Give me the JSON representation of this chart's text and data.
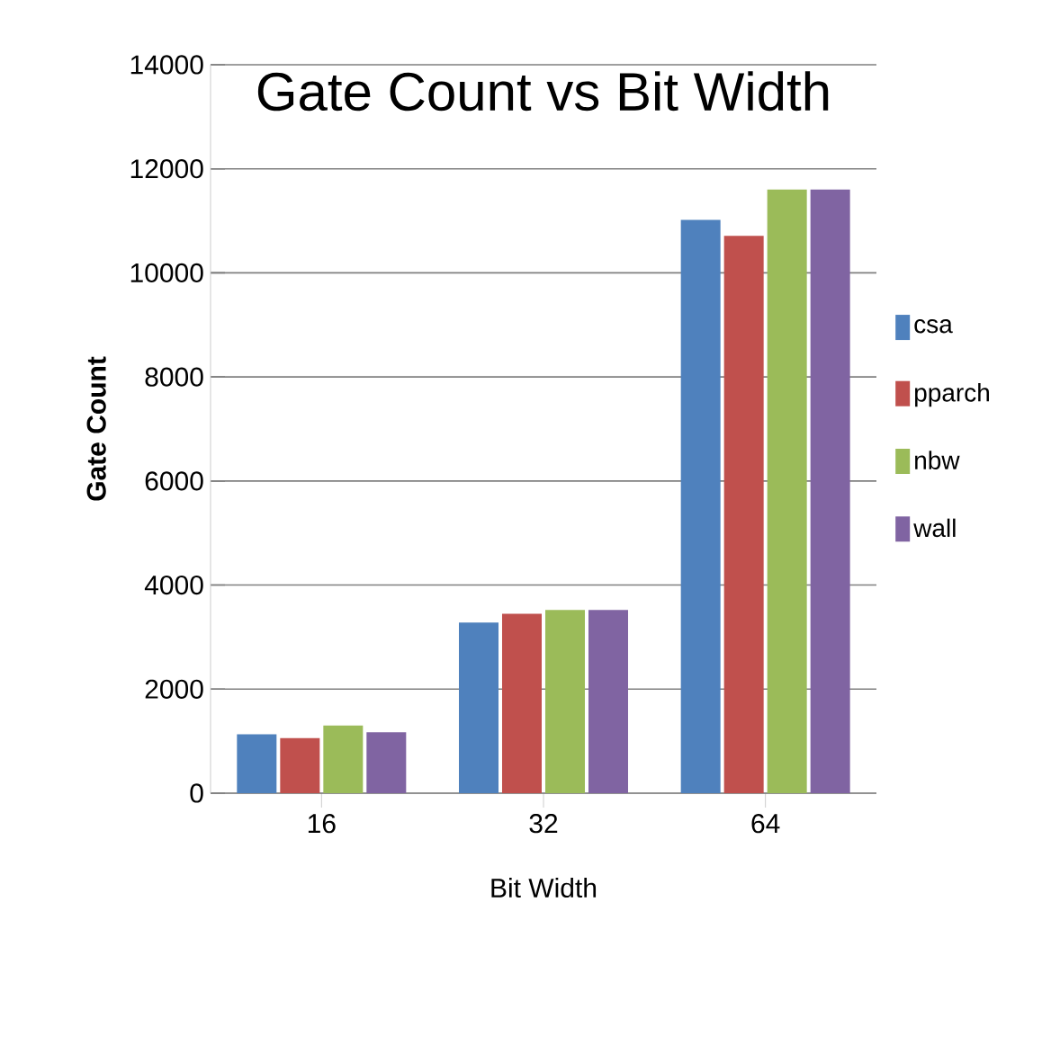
{
  "chart_data": {
    "type": "bar",
    "title": "Gate Count vs Bit Width",
    "xlabel": "Bit Width",
    "ylabel": "Gate Count",
    "categories": [
      "16",
      "32",
      "64"
    ],
    "series": [
      {
        "name": "csa",
        "color": "#4f81bd",
        "values": [
          1130,
          3280,
          11020
        ]
      },
      {
        "name": "pparch",
        "color": "#c0504d",
        "values": [
          1060,
          3450,
          10710
        ]
      },
      {
        "name": "nbw",
        "color": "#9bbb59",
        "values": [
          1300,
          3520,
          11600
        ]
      },
      {
        "name": "wall",
        "color": "#8064a2",
        "values": [
          1170,
          3520,
          11600
        ]
      }
    ],
    "ylim": [
      0,
      14000
    ],
    "yticks": [
      0,
      2000,
      4000,
      6000,
      8000,
      10000,
      12000,
      14000
    ],
    "grid": "y",
    "legend": "right"
  }
}
